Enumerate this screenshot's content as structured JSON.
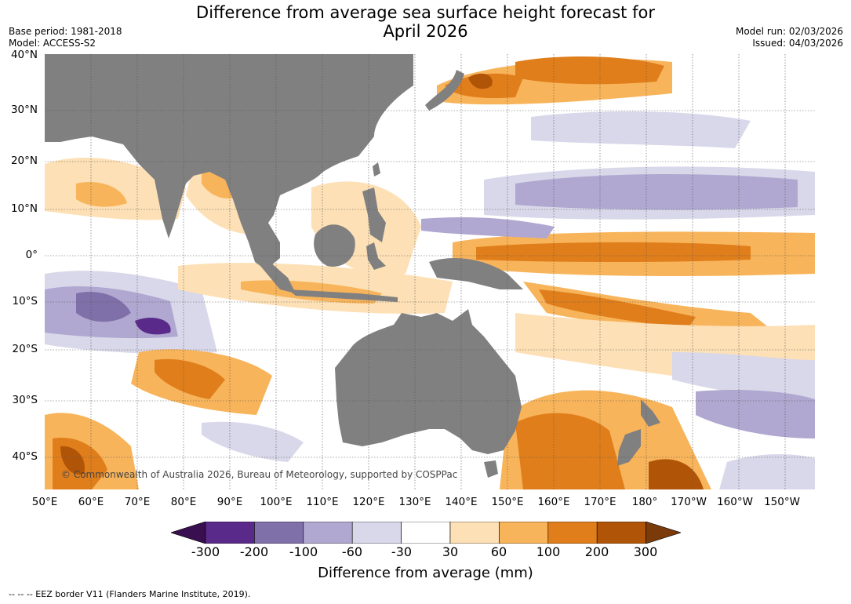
{
  "title_line1": "Difference from average sea surface height forecast for",
  "title_line2": "April 2026",
  "base_period": "Base period: 1981-2018",
  "model": "Model: ACCESS-S2",
  "model_run": "Model run: 02/03/2026",
  "issued": "Issued: 04/03/2026",
  "latitude_labels": [
    "40°N",
    "30°N",
    "20°N",
    "10°N",
    "0°",
    "10°S",
    "20°S",
    "30°S",
    "40°S"
  ],
  "longitude_labels": [
    "50°E",
    "60°E",
    "70°E",
    "80°E",
    "90°E",
    "100°E",
    "110°E",
    "120°E",
    "130°E",
    "140°E",
    "150°E",
    "160°E",
    "170°E",
    "180°",
    "170°W",
    "160°W",
    "150°W"
  ],
  "credit": "© Commonwealth of Australia 2026, Bureau of Meteorology, supported by COSPPac",
  "colorbar": {
    "tick_labels": [
      "-300",
      "-200",
      "-100",
      "-60",
      "-30",
      "30",
      "60",
      "100",
      "200",
      "300"
    ],
    "colors": [
      "#3a0f4f",
      "#5a2a8a",
      "#8070aa",
      "#b0a8d0",
      "#d8d8ea",
      "#ffffff",
      "#fde0b5",
      "#f8b45a",
      "#e07e1b",
      "#b05508",
      "#7a3a0a"
    ],
    "title": "Difference from average (mm)"
  },
  "footnote": "--  --  -- EEZ border V11 (Flanders Marine Institute, 2019).",
  "legend_colors": {
    "land": "#808080",
    "grid": "#555555"
  }
}
